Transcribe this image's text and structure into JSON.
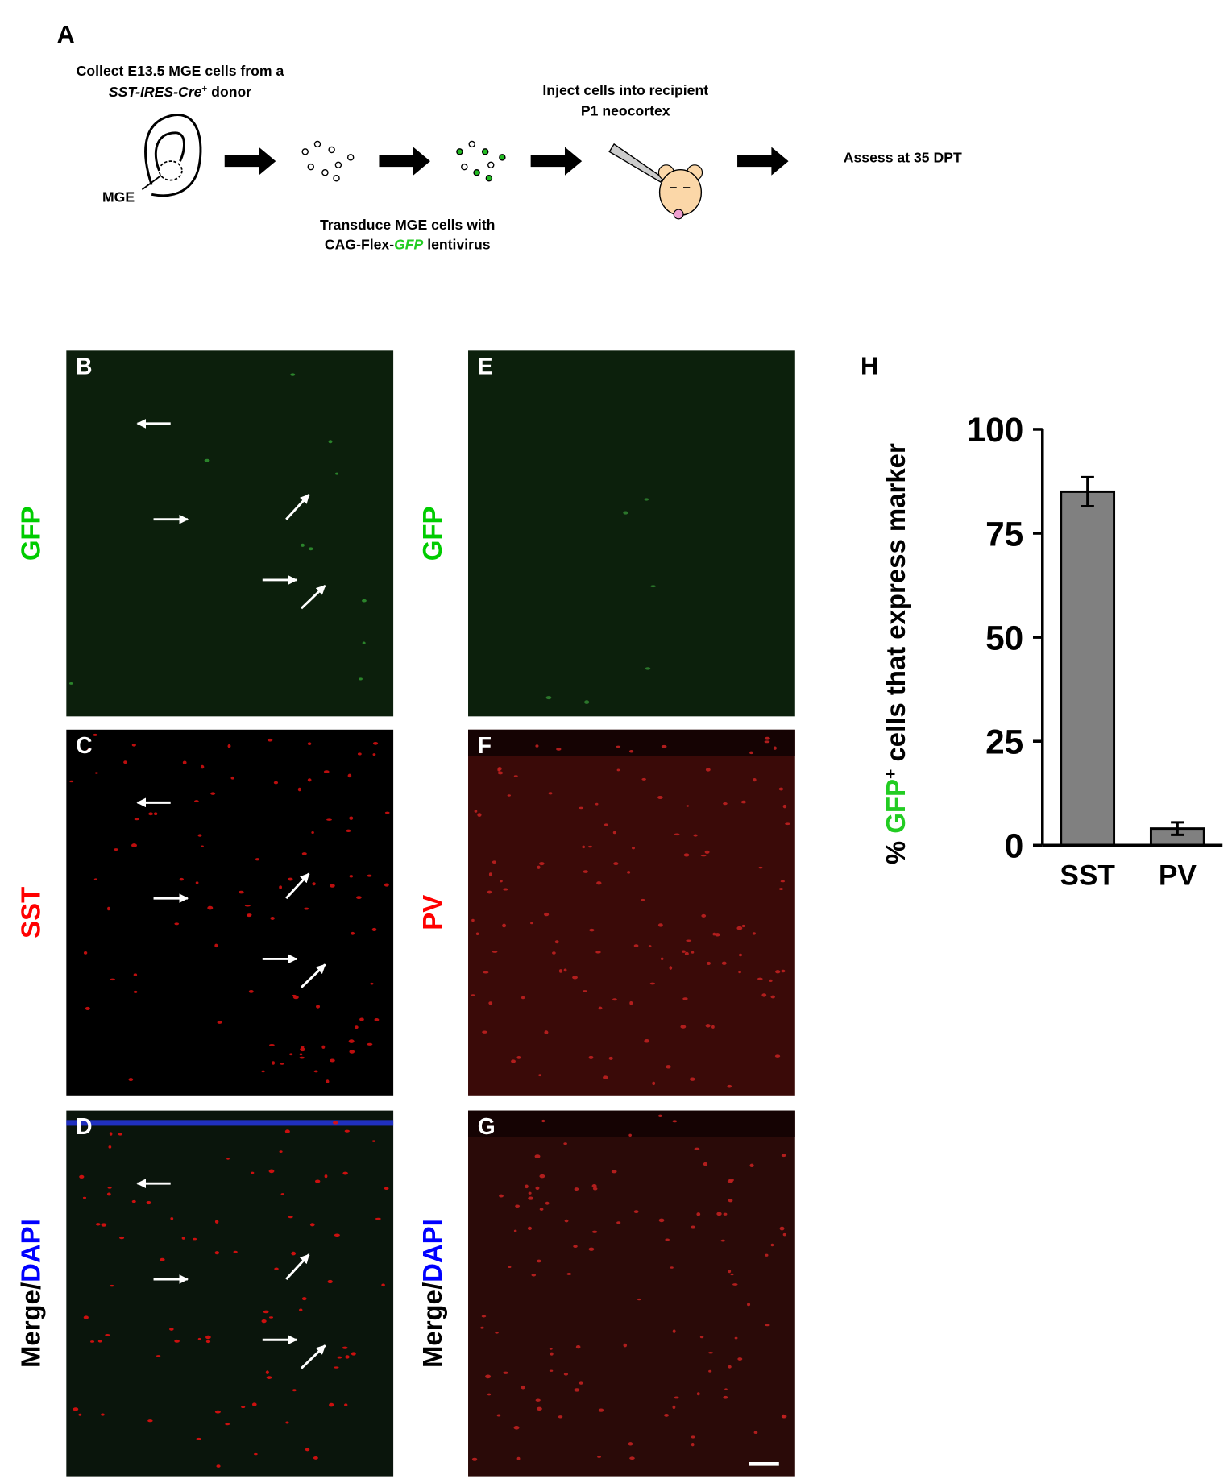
{
  "panel_a": {
    "label": "A",
    "collect_line1": "Collect E13.5 MGE cells from a",
    "collect_line2": [
      "SST-IRES-Cre",
      "+",
      " donor"
    ],
    "mge": "MGE",
    "transduce_line1": "Transduce MGE cells with",
    "transduce_line2": [
      "CAG-Flex-",
      "GFP",
      " lentivirus"
    ],
    "inject_line1": "Inject cells into recipient",
    "inject_line2": "P1 neocortex",
    "assess": "Assess at 35 DPT"
  },
  "panels": [
    {
      "label": "B",
      "stain": [
        {
          "text": "GFP",
          "color": "#00cc00"
        }
      ]
    },
    {
      "label": "C",
      "stain": [
        {
          "text": "SST",
          "color": "#ff0000"
        }
      ]
    },
    {
      "label": "D",
      "stain": [
        {
          "text": "Merge/",
          "color": "#000000"
        },
        {
          "text": "DAPI",
          "color": "#0000ff"
        }
      ]
    },
    {
      "label": "E",
      "stain": [
        {
          "text": "GFP",
          "color": "#00cc00"
        }
      ]
    },
    {
      "label": "F",
      "stain": [
        {
          "text": "PV",
          "color": "#ff0000"
        }
      ]
    },
    {
      "label": "G",
      "stain": [
        {
          "text": "Merge/",
          "color": "#000000"
        },
        {
          "text": "DAPI",
          "color": "#0000ff"
        }
      ]
    }
  ],
  "chart_data": {
    "type": "bar",
    "label": "H",
    "ylabel": [
      "% ",
      "GFP",
      "+",
      " cells that express marker"
    ],
    "categories": [
      "SST",
      "PV"
    ],
    "values": [
      85,
      4
    ],
    "errors": [
      3.5,
      1.5
    ],
    "color": "#808080",
    "ylim": [
      0,
      100
    ],
    "yticks": [
      0,
      25,
      50,
      75,
      100
    ]
  }
}
